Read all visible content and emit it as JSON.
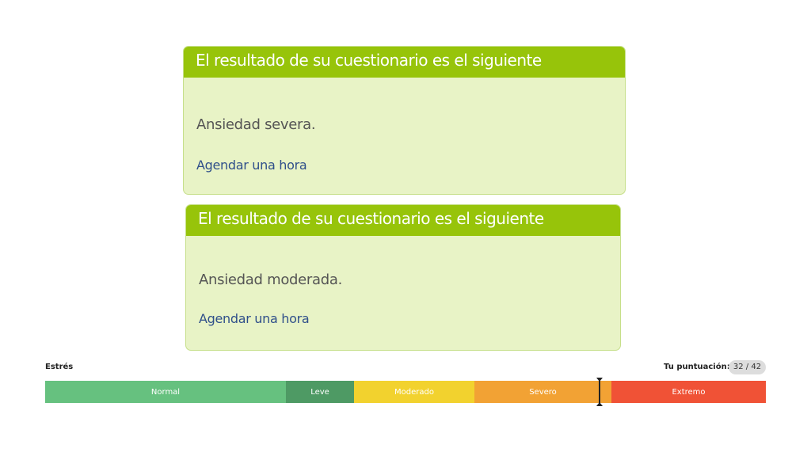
{
  "cards": [
    {
      "title": "El resultado de su cuestionario es el siguiente",
      "result": "Ansiedad severa.",
      "link": "Agendar una hora"
    },
    {
      "title": "El resultado de su cuestionario es el siguiente",
      "result": "Ansiedad moderada.",
      "link": "Agendar una hora"
    }
  ],
  "scale": {
    "label": "Estrés",
    "score_label": "Tu puntuación:",
    "score": "32 / 42",
    "score_value": 32,
    "score_max": 42,
    "segments": [
      {
        "label": "Normal",
        "color": "#66c17f"
      },
      {
        "label": "Leve",
        "color": "#4e9a64"
      },
      {
        "label": "Moderado",
        "color": "#f2d22e"
      },
      {
        "label": "Severo",
        "color": "#f2a234"
      },
      {
        "label": "Extremo",
        "color": "#f05236"
      }
    ]
  }
}
